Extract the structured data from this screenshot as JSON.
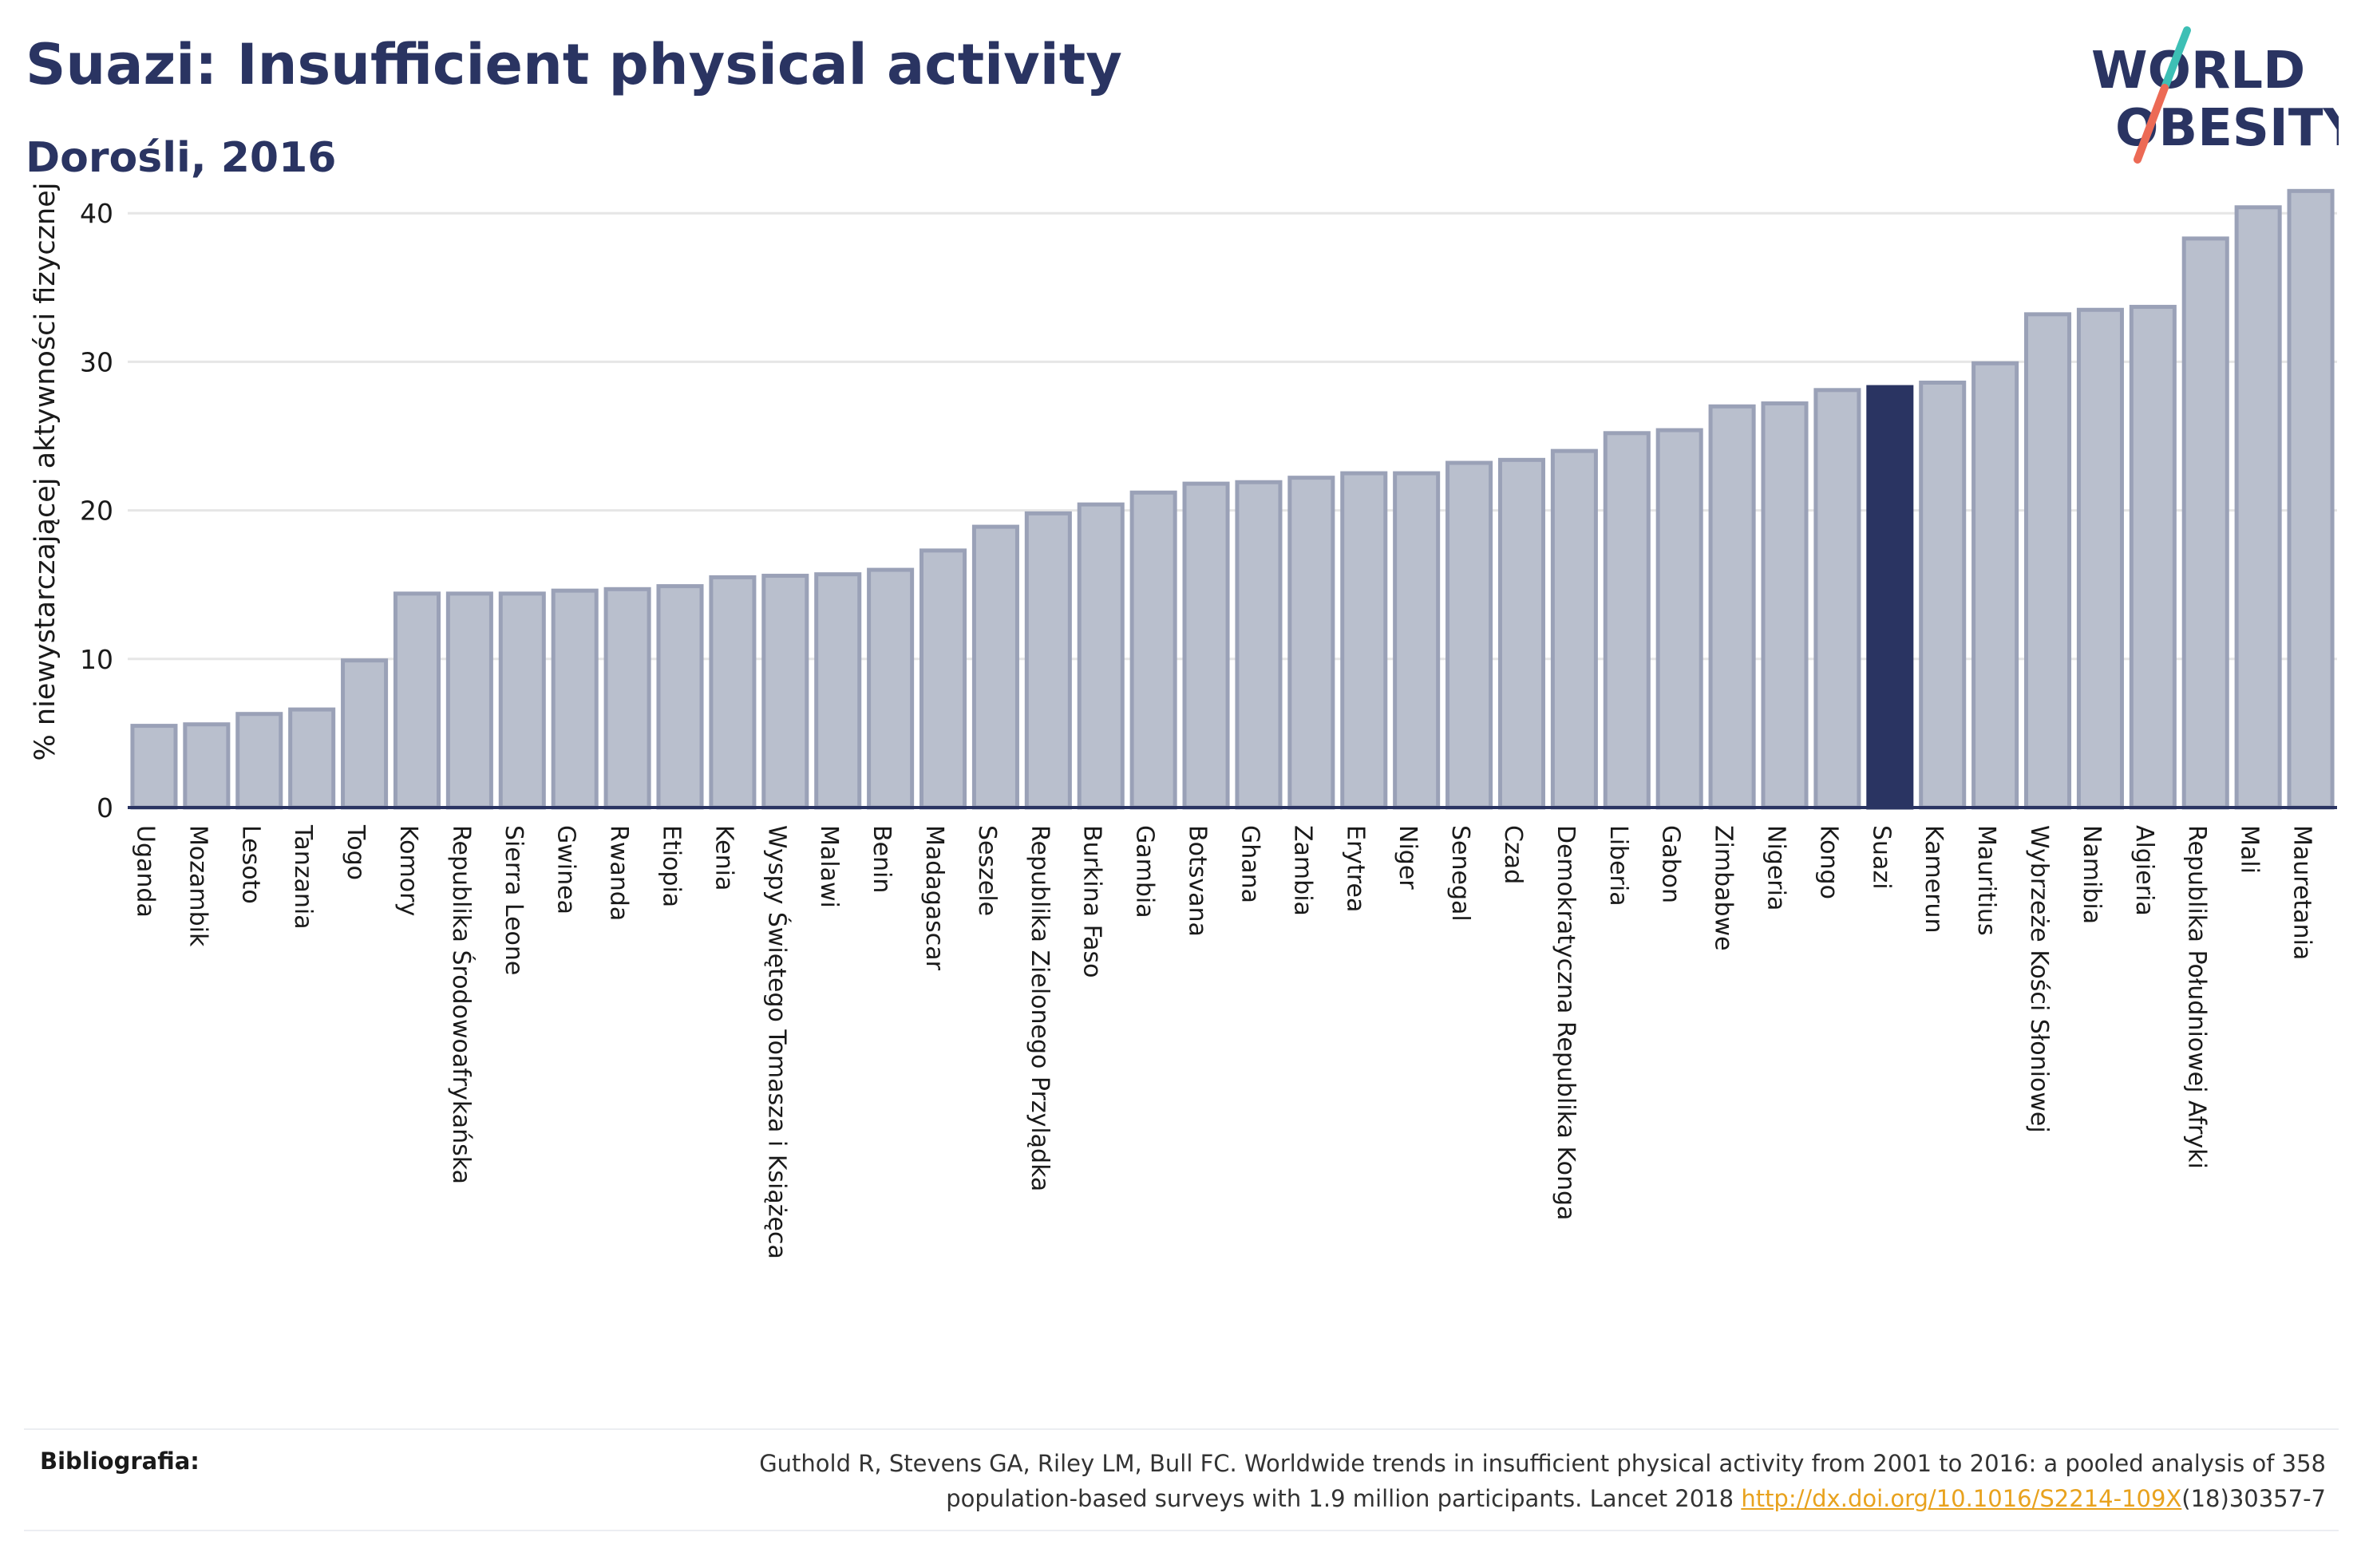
{
  "header": {
    "title": "Suazi: Insufficient physical activity",
    "subtitle": "Dorośli, 2016"
  },
  "logo": {
    "line1": "WORLD",
    "line2": "OBESITY"
  },
  "colors": {
    "bar": "#b9bfcd",
    "bar_edge": "#9aa1b7",
    "highlight": "#2a3462",
    "title": "#2a3462",
    "link": "#e8a21e"
  },
  "chart_data": {
    "type": "bar",
    "ylabel": "% niewystarczającej aktywności fizycznej",
    "ylim": [
      0,
      42
    ],
    "yticks": [
      0,
      10,
      20,
      30,
      40
    ],
    "grid": true,
    "highlight": "Suazi",
    "categories": [
      "Uganda",
      "Mozambik",
      "Lesoto",
      "Tanzania",
      "Togo",
      "Komory",
      "Republika Środowoafrykańska",
      "Sierra Leone",
      "Gwinea",
      "Rwanda",
      "Etiopia",
      "Kenia",
      "Wyspy Świętego Tomasza i Książęca",
      "Malawi",
      "Benin",
      "Madagascar",
      "Seszele",
      "Republika Zielonego Przylądka",
      "Burkina Faso",
      "Gambia",
      "Botsvana",
      "Ghana",
      "Zambia",
      "Erytrea",
      "Niger",
      "Senegal",
      "Czad",
      "Demokratyczna Republika Konga",
      "Liberia",
      "Gabon",
      "Zimbabwe",
      "Nigeria",
      "Kongo",
      "Suazi",
      "Kamerun",
      "Mauritius",
      "Wybrzeże Kości Słoniowej",
      "Namibia",
      "Algieria",
      "Republika Południowej Afryki",
      "Mali",
      "Mauretania"
    ],
    "values": [
      5.5,
      5.6,
      6.3,
      6.6,
      9.9,
      14.4,
      14.4,
      14.4,
      14.6,
      14.7,
      14.9,
      15.5,
      15.6,
      15.7,
      16.0,
      17.3,
      18.9,
      19.8,
      20.4,
      21.2,
      21.8,
      21.9,
      22.2,
      22.5,
      22.5,
      23.2,
      23.4,
      24.0,
      25.2,
      25.4,
      27.0,
      27.2,
      28.1,
      28.3,
      28.6,
      29.9,
      33.2,
      33.5,
      33.7,
      38.3,
      40.4,
      41.5
    ]
  },
  "references": {
    "label": "Bibliografia:",
    "text_line1": "Guthold R, Stevens GA, Riley LM, Bull FC. Worldwide trends in insufficient physical activity from 2001 to 2016: a pooled analysis of 358",
    "text_line2_prefix": "population-based surveys with 1.9 million participants. Lancet 2018 ",
    "link": "http://dx.doi.org/10.1016/S2214-109X",
    "text_line2_suffix": "(18)30357-7"
  }
}
